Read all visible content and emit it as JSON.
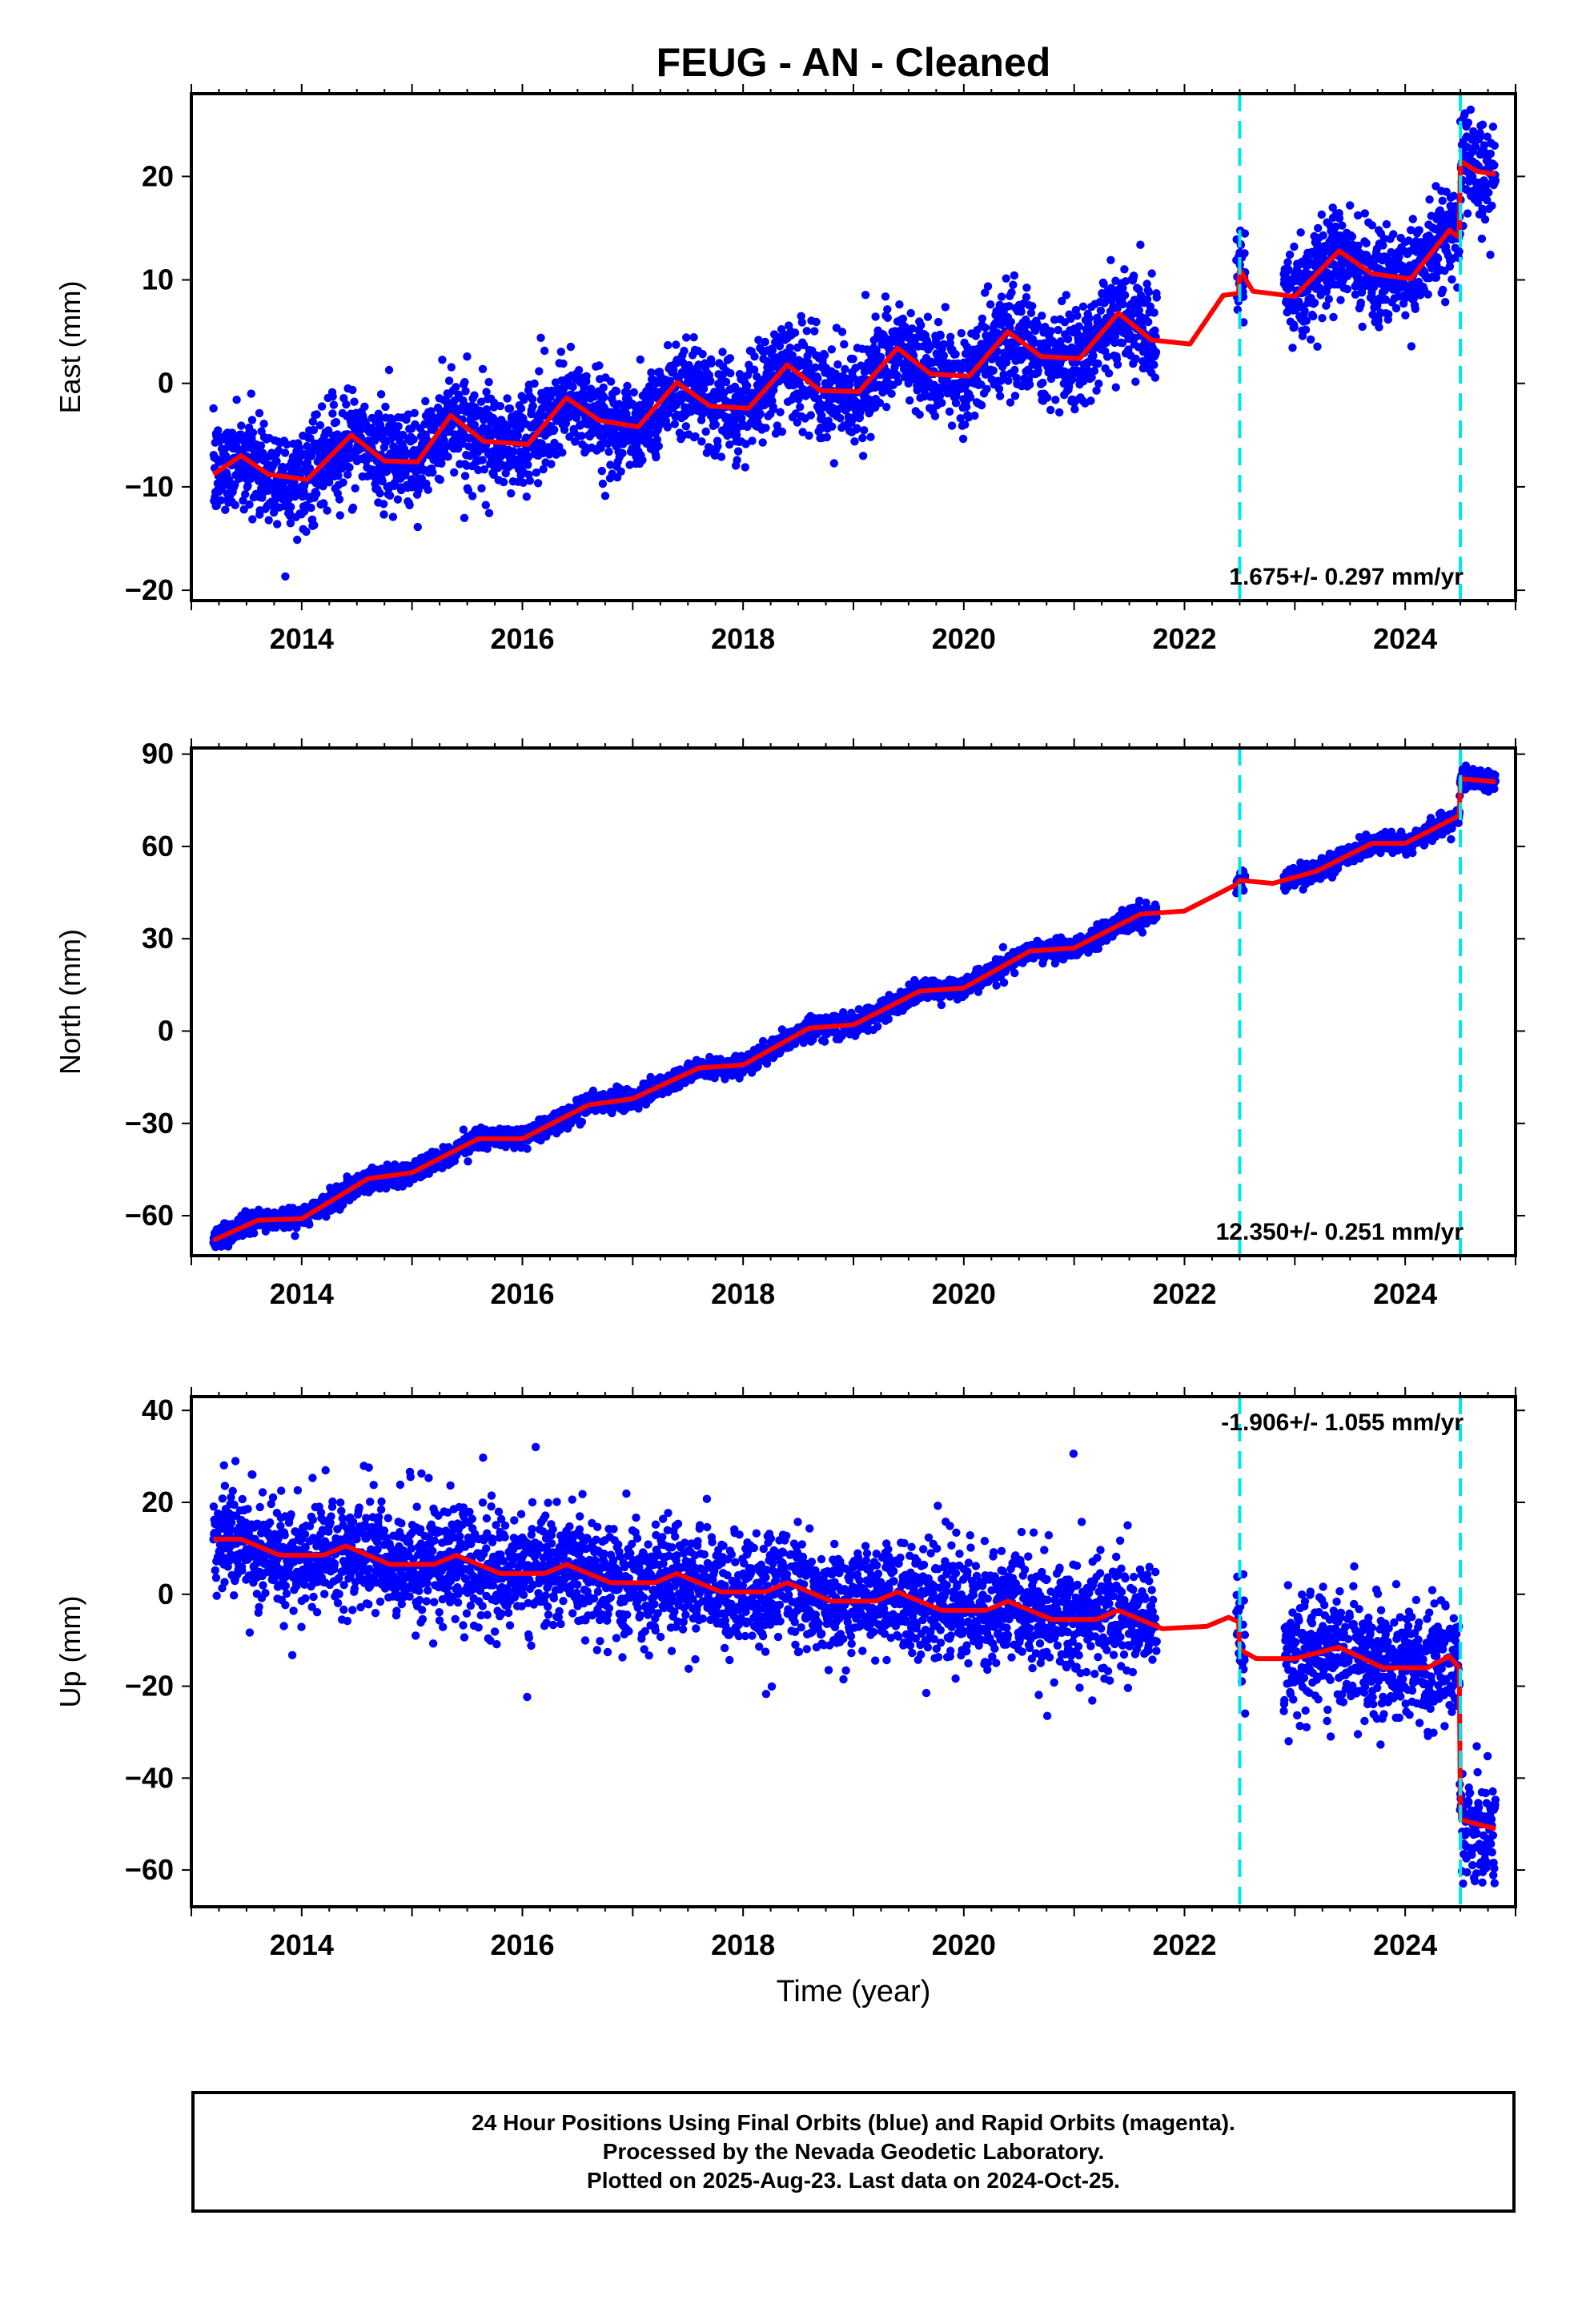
{
  "title": "FEUG  - AN - Cleaned",
  "footer": {
    "line1": "24 Hour Positions Using Final Orbits (blue) and Rapid Orbits (magenta).",
    "line2": "Processed by the Nevada Geodetic Laboratory.",
    "line3": "Plotted on 2025-Aug-23. Last data on 2024-Oct-25."
  },
  "colors": {
    "points": "#0000ff",
    "model": "#ff0000",
    "breaks": "#00e5ee"
  },
  "chart_data": [
    {
      "type": "scatter",
      "ylabel": "East (mm)",
      "xlabel": "",
      "xlim": [
        2013.0,
        2025.0
      ],
      "ylim": [
        -21,
        28
      ],
      "x_ticks": [
        "2014",
        "2016",
        "2018",
        "2020",
        "2022",
        "2024"
      ],
      "y_ticks": [
        "20",
        "10",
        "0",
        "−10",
        "−20"
      ],
      "y_tick_values": [
        20,
        10,
        0,
        -10,
        -20
      ],
      "rate_label": "1.675+/- 0.297 mm/yr",
      "breaks": [
        2022.5,
        2024.5
      ],
      "model_knots": [
        [
          2013.2,
          -8.8
        ],
        [
          2013.45,
          -7
        ],
        [
          2013.7,
          -8.8
        ],
        [
          2014.05,
          -9.3
        ],
        [
          2014.45,
          -5
        ],
        [
          2014.75,
          -7.5
        ],
        [
          2015.05,
          -7.6
        ],
        [
          2015.35,
          -3.1
        ],
        [
          2015.65,
          -5.6
        ],
        [
          2016.05,
          -5.9
        ],
        [
          2016.4,
          -1.4
        ],
        [
          2016.7,
          -3.6
        ],
        [
          2017.05,
          -4.2
        ],
        [
          2017.4,
          0.1
        ],
        [
          2017.7,
          -2.2
        ],
        [
          2018.05,
          -2.4
        ],
        [
          2018.4,
          1.8
        ],
        [
          2018.7,
          -0.7
        ],
        [
          2019.05,
          -0.8
        ],
        [
          2019.4,
          3.4
        ],
        [
          2019.7,
          0.9
        ],
        [
          2020.05,
          0.7
        ],
        [
          2020.4,
          5
        ],
        [
          2020.7,
          2.6
        ],
        [
          2021.05,
          2.4
        ],
        [
          2021.4,
          6.8
        ],
        [
          2021.7,
          4.2
        ],
        [
          2022.05,
          3.8
        ],
        [
          2022.35,
          8.5
        ],
        [
          2022.49,
          8.7
        ],
        [
          2022.5,
          11
        ],
        [
          2022.62,
          8.9
        ],
        [
          2023.0,
          8.4
        ],
        [
          2023.4,
          12.8
        ],
        [
          2023.7,
          10.6
        ],
        [
          2024.05,
          10.1
        ],
        [
          2024.4,
          14.8
        ],
        [
          2024.49,
          14.1
        ],
        [
          2024.5,
          21.5
        ],
        [
          2024.65,
          20.5
        ],
        [
          2024.82,
          20.2
        ]
      ],
      "noise_sd": 2.3,
      "segments": [
        [
          2013.2,
          2021.75
        ],
        [
          2022.47,
          2022.55
        ],
        [
          2022.9,
          2024.82
        ]
      ]
    },
    {
      "type": "scatter",
      "ylabel": "North (mm)",
      "xlabel": "",
      "xlim": [
        2013.0,
        2025.0
      ],
      "ylim": [
        -73,
        92
      ],
      "x_ticks": [
        "2014",
        "2016",
        "2018",
        "2020",
        "2022",
        "2024"
      ],
      "y_ticks": [
        "90",
        "60",
        "30",
        "0",
        "−30",
        "−60"
      ],
      "y_tick_values": [
        90,
        60,
        30,
        0,
        -30,
        -60
      ],
      "rate_label": "12.350+/- 0.251 mm/yr",
      "breaks": [
        2022.5,
        2024.5
      ],
      "model_knots": [
        [
          2013.2,
          -68
        ],
        [
          2013.6,
          -61.5
        ],
        [
          2014.0,
          -61
        ],
        [
          2014.6,
          -48
        ],
        [
          2015.0,
          -46
        ],
        [
          2015.6,
          -35
        ],
        [
          2016.0,
          -35
        ],
        [
          2016.6,
          -24
        ],
        [
          2017.0,
          -22
        ],
        [
          2017.6,
          -12
        ],
        [
          2018.0,
          -11
        ],
        [
          2018.6,
          1
        ],
        [
          2019.0,
          2
        ],
        [
          2019.6,
          13
        ],
        [
          2020.0,
          14
        ],
        [
          2020.6,
          26
        ],
        [
          2021.0,
          27
        ],
        [
          2021.6,
          38
        ],
        [
          2022.0,
          39
        ],
        [
          2022.49,
          48
        ],
        [
          2022.5,
          49
        ],
        [
          2022.8,
          48
        ],
        [
          2023.2,
          52
        ],
        [
          2023.7,
          61
        ],
        [
          2024.0,
          61
        ],
        [
          2024.49,
          70
        ],
        [
          2024.5,
          82
        ],
        [
          2024.82,
          81
        ]
      ],
      "noise_sd": 1.6,
      "segments": [
        [
          2013.2,
          2021.75
        ],
        [
          2022.47,
          2022.55
        ],
        [
          2022.9,
          2024.82
        ]
      ]
    },
    {
      "type": "scatter",
      "ylabel": "Up (mm)",
      "xlabel": "Time (year)",
      "xlim": [
        2013.0,
        2025.0
      ],
      "ylim": [
        -68,
        43
      ],
      "x_ticks": [
        "2014",
        "2016",
        "2018",
        "2020",
        "2022",
        "2024"
      ],
      "y_ticks": [
        "40",
        "20",
        "0",
        "−20",
        "−40",
        "−60"
      ],
      "y_tick_values": [
        40,
        20,
        0,
        -20,
        -40,
        -60
      ],
      "rate_label": "-1.906+/- 1.055 mm/yr",
      "breaks": [
        2022.5,
        2024.5
      ],
      "model_knots": [
        [
          2013.2,
          12
        ],
        [
          2013.45,
          12
        ],
        [
          2013.8,
          8.5
        ],
        [
          2014.2,
          8.5
        ],
        [
          2014.4,
          10.5
        ],
        [
          2014.8,
          6.5
        ],
        [
          2015.2,
          6.5
        ],
        [
          2015.4,
          8.5
        ],
        [
          2015.8,
          4.5
        ],
        [
          2016.2,
          4.5
        ],
        [
          2016.4,
          6.5
        ],
        [
          2016.8,
          2.5
        ],
        [
          2017.2,
          2.5
        ],
        [
          2017.4,
          4.5
        ],
        [
          2017.8,
          0.5
        ],
        [
          2018.2,
          0.5
        ],
        [
          2018.4,
          2.5
        ],
        [
          2018.8,
          -1.5
        ],
        [
          2019.2,
          -1.5
        ],
        [
          2019.4,
          0.5
        ],
        [
          2019.8,
          -3.5
        ],
        [
          2020.2,
          -3.5
        ],
        [
          2020.4,
          -1.5
        ],
        [
          2020.8,
          -5.5
        ],
        [
          2021.2,
          -5.5
        ],
        [
          2021.4,
          -3.5
        ],
        [
          2021.8,
          -7.5
        ],
        [
          2022.2,
          -7
        ],
        [
          2022.4,
          -5
        ],
        [
          2022.49,
          -6
        ],
        [
          2022.5,
          -12
        ],
        [
          2022.65,
          -14
        ],
        [
          2023.0,
          -14
        ],
        [
          2023.4,
          -11.5
        ],
        [
          2023.8,
          -16
        ],
        [
          2024.2,
          -16
        ],
        [
          2024.4,
          -13.5
        ],
        [
          2024.49,
          -16
        ],
        [
          2024.5,
          -49
        ],
        [
          2024.65,
          -50
        ],
        [
          2024.82,
          -51
        ]
      ],
      "noise_sd": 6.0,
      "segments": [
        [
          2013.2,
          2021.75
        ],
        [
          2022.47,
          2022.55
        ],
        [
          2022.9,
          2024.82
        ]
      ]
    }
  ]
}
